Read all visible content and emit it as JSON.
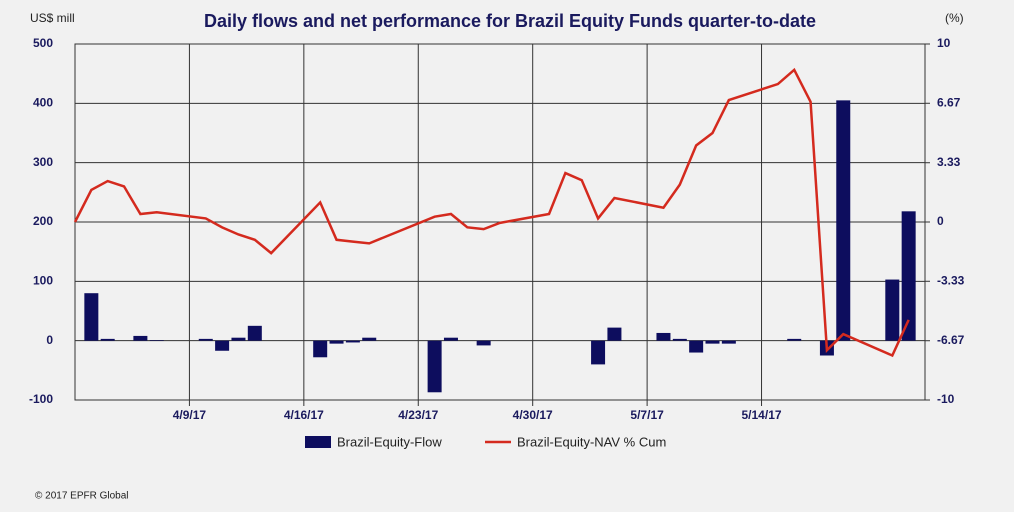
{
  "chart_data": {
    "type": "combo",
    "title": "Daily flows and net performance for Brazil Equity Funds quarter-to-date",
    "y_label": "US$ mill",
    "y2_label": "(%)",
    "x": [
      "2017-04-02",
      "2017-04-03",
      "2017-04-04",
      "2017-04-05",
      "2017-04-06",
      "2017-04-07",
      "2017-04-10",
      "2017-04-11",
      "2017-04-12",
      "2017-04-13",
      "2017-04-14",
      "2017-04-17",
      "2017-04-18",
      "2017-04-19",
      "2017-04-20",
      "2017-04-24",
      "2017-04-25",
      "2017-04-26",
      "2017-04-27",
      "2017-04-28",
      "2017-05-01",
      "2017-05-02",
      "2017-05-03",
      "2017-05-04",
      "2017-05-05",
      "2017-05-08",
      "2017-05-09",
      "2017-05-10",
      "2017-05-11",
      "2017-05-12",
      "2017-05-15",
      "2017-05-16",
      "2017-05-17",
      "2017-05-18",
      "2017-05-19",
      "2017-05-22",
      "2017-05-23"
    ],
    "series": [
      {
        "name": "Brazil-Equity-Flow",
        "type": "bar",
        "color": "#0d0d5e",
        "values": [
          null,
          80,
          3,
          null,
          8,
          1,
          3,
          -17,
          5,
          25,
          null,
          -28,
          -5,
          -3,
          5,
          -87,
          5,
          null,
          -8,
          null,
          null,
          null,
          null,
          -40,
          22,
          13,
          3,
          -20,
          -5,
          -5,
          null,
          3,
          null,
          -25,
          405,
          103,
          218
        ]
      },
      {
        "name": "Brazil-Equity-NAV % Cum",
        "type": "line",
        "color": "#d42a1e",
        "axis": "y2",
        "values": [
          0,
          1.8,
          2.3,
          2.0,
          0.45,
          0.55,
          0.2,
          -0.3,
          -0.7,
          -1.0,
          -1.75,
          1.1,
          -1.0,
          -1.1,
          -1.2,
          0.3,
          0.45,
          -0.3,
          -0.4,
          -0.05,
          0.45,
          2.75,
          2.35,
          0.2,
          1.35,
          0.8,
          2.1,
          4.3,
          5.0,
          6.85,
          7.75,
          8.55,
          6.75,
          -7.2,
          -6.3,
          -7.5,
          -5.5
        ]
      }
    ],
    "xlim": [
      "2017-04-02",
      "2017-05-24"
    ],
    "xticks": [
      {
        "value": "2017-04-09",
        "label": "4/9/17"
      },
      {
        "value": "2017-04-16",
        "label": "4/16/17"
      },
      {
        "value": "2017-04-23",
        "label": "4/23/17"
      },
      {
        "value": "2017-04-30",
        "label": "4/30/17"
      },
      {
        "value": "2017-05-07",
        "label": "5/7/17"
      },
      {
        "value": "2017-05-14",
        "label": "5/14/17"
      }
    ],
    "ylim": [
      -100,
      500
    ],
    "yticks": [
      -100,
      0,
      100,
      200,
      300,
      400,
      500
    ],
    "y2lim": [
      -10,
      10
    ],
    "y2ticks": [
      -10,
      -6.67,
      -3.33,
      0,
      3.33,
      6.67,
      10
    ],
    "grid": true,
    "footer": "© 2017 EPFR Global"
  }
}
